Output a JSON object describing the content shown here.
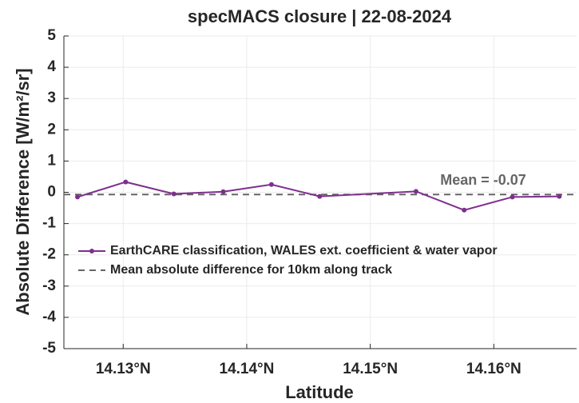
{
  "chart_data": {
    "type": "line",
    "title": "specMACS closure | 22-08-2024",
    "x_label": "Latitude",
    "y_label": "Absolute Difference [W/m²/sr]",
    "x": [
      14.1263,
      14.1302,
      14.1341,
      14.1381,
      14.142,
      14.1459,
      14.1537,
      14.1576,
      14.1615,
      14.1653
    ],
    "series": [
      {
        "name": "EarthCARE classification, WALES ext. coefficient & water vapor",
        "color": "#7e2f8e",
        "values": [
          -0.15,
          0.33,
          -0.05,
          0.02,
          0.25,
          -0.13,
          0.03,
          -0.57,
          -0.15,
          -0.13
        ]
      }
    ],
    "mean": {
      "name": "Mean absolute difference for 10km along track",
      "value": -0.07,
      "label": "Mean = -0.07",
      "color": "#666666"
    },
    "xlim": [
      14.1252,
      14.1667
    ],
    "xticks": [
      {
        "value": 14.13,
        "label": "14.13°N"
      },
      {
        "value": 14.14,
        "label": "14.14°N"
      },
      {
        "value": 14.15,
        "label": "14.15°N"
      },
      {
        "value": 14.16,
        "label": "14.16°N"
      }
    ],
    "ylim": [
      -5,
      5
    ],
    "yticks": [
      -5,
      -4,
      -3,
      -2,
      -1,
      0,
      1,
      2,
      3,
      4,
      5
    ],
    "grid": true,
    "legend": "lower-left"
  }
}
